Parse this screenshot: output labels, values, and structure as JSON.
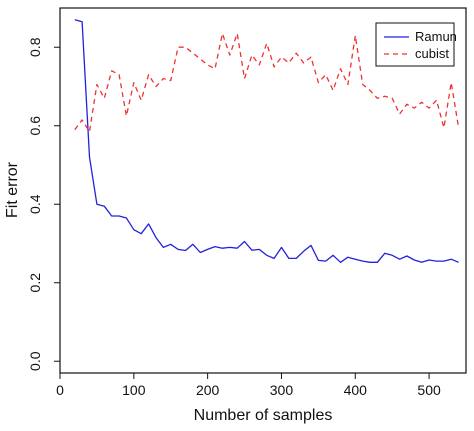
{
  "chart_data": {
    "type": "line",
    "title": "",
    "xlabel": "Number of samples",
    "ylabel": "Fit error",
    "xlim": [
      0,
      550
    ],
    "ylim": [
      -0.03,
      0.9
    ],
    "xticks": [
      0,
      100,
      200,
      300,
      400,
      500
    ],
    "yticks": [
      0.0,
      0.2,
      0.4,
      0.6,
      0.8
    ],
    "ytick_labels": [
      "0.0",
      "0.2",
      "0.4",
      "0.6",
      "0.8"
    ],
    "legend_position": "top-right",
    "grid": false,
    "series": [
      {
        "name": "Ramun",
        "color": "#2222dd",
        "dash": "solid",
        "x": [
          20,
          30,
          40,
          50,
          60,
          70,
          80,
          90,
          100,
          110,
          120,
          130,
          140,
          150,
          160,
          170,
          180,
          190,
          200,
          210,
          220,
          230,
          240,
          250,
          260,
          270,
          280,
          290,
          300,
          310,
          320,
          330,
          340,
          350,
          360,
          370,
          380,
          390,
          400,
          410,
          420,
          430,
          440,
          450,
          460,
          470,
          480,
          490,
          500,
          510,
          520,
          530,
          540
        ],
        "values": [
          0.87,
          0.865,
          0.52,
          0.4,
          0.395,
          0.37,
          0.37,
          0.365,
          0.335,
          0.325,
          0.35,
          0.315,
          0.29,
          0.298,
          0.285,
          0.282,
          0.298,
          0.277,
          0.285,
          0.292,
          0.288,
          0.29,
          0.288,
          0.305,
          0.283,
          0.285,
          0.27,
          0.262,
          0.29,
          0.262,
          0.262,
          0.28,
          0.295,
          0.257,
          0.255,
          0.27,
          0.252,
          0.265,
          0.26,
          0.255,
          0.252,
          0.252,
          0.275,
          0.27,
          0.26,
          0.268,
          0.258,
          0.252,
          0.258,
          0.255,
          0.255,
          0.26,
          0.252
        ]
      },
      {
        "name": "cubist",
        "color": "#ee3333",
        "dash": "dashed",
        "x": [
          20,
          30,
          40,
          50,
          60,
          70,
          80,
          90,
          100,
          110,
          120,
          130,
          140,
          150,
          160,
          170,
          180,
          190,
          200,
          210,
          220,
          230,
          240,
          250,
          260,
          270,
          280,
          290,
          300,
          310,
          320,
          330,
          340,
          350,
          360,
          370,
          380,
          390,
          400,
          410,
          420,
          430,
          440,
          450,
          460,
          470,
          480,
          490,
          500,
          510,
          520,
          530,
          540
        ],
        "values": [
          0.59,
          0.615,
          0.585,
          0.705,
          0.67,
          0.74,
          0.73,
          0.625,
          0.71,
          0.665,
          0.73,
          0.7,
          0.72,
          0.715,
          0.8,
          0.8,
          0.785,
          0.77,
          0.755,
          0.745,
          0.835,
          0.78,
          0.835,
          0.72,
          0.78,
          0.755,
          0.81,
          0.75,
          0.775,
          0.76,
          0.785,
          0.76,
          0.775,
          0.71,
          0.73,
          0.69,
          0.745,
          0.705,
          0.83,
          0.705,
          0.69,
          0.67,
          0.675,
          0.67,
          0.63,
          0.655,
          0.645,
          0.66,
          0.645,
          0.665,
          0.595,
          0.71,
          0.595
        ]
      }
    ]
  }
}
